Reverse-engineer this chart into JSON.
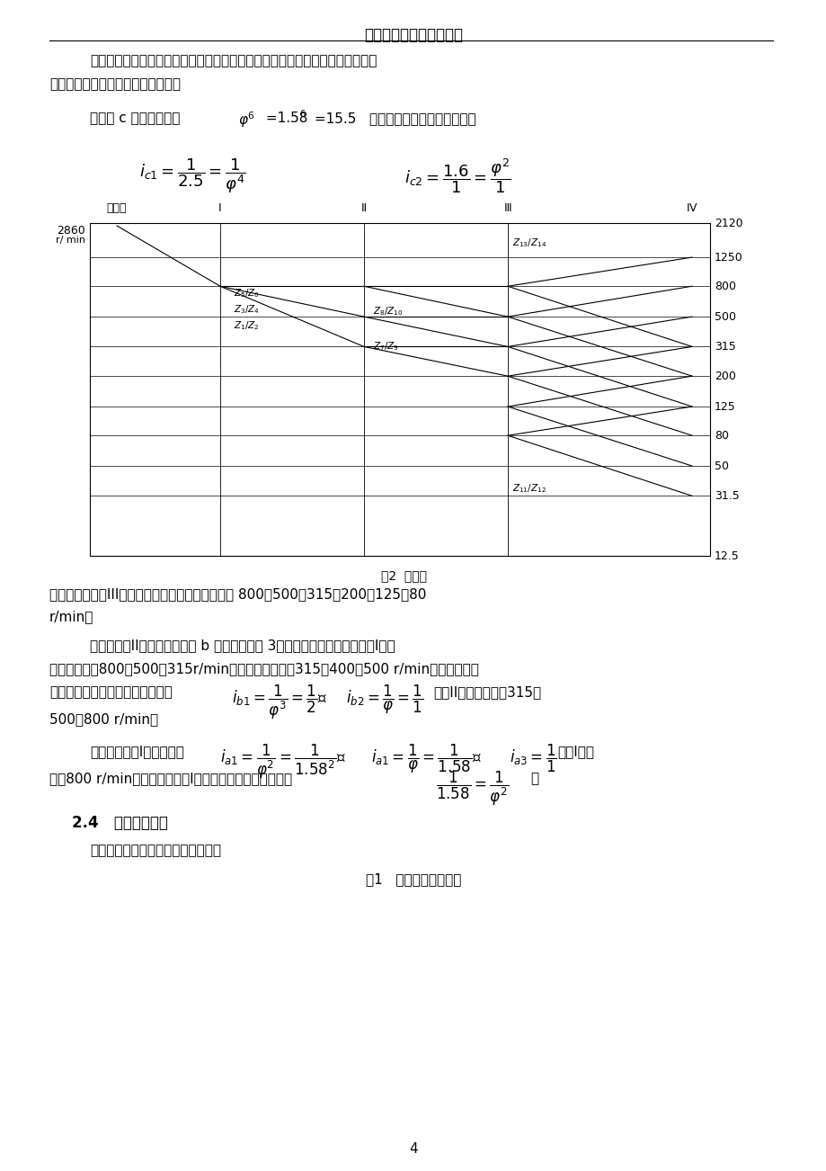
{
  "title": "中北大学课程设计说明书",
  "bg_color": "#ffffff",
  "text_color": "#000000",
  "page_number": "4",
  "chart_caption": "图2  转速图",
  "speeds_right": [
    2120,
    1250,
    800,
    500,
    315,
    200,
    125,
    80,
    50,
    31.5,
    12.5
  ],
  "section_title": "2.4   齿轮齿数确定",
  "section_para": "    利用查表法求出各传动组齿轮齿数：",
  "table_title": "表1   各传动组齿轮齿数"
}
